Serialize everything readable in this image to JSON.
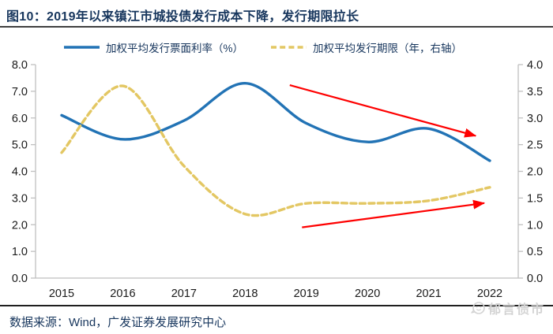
{
  "page": {
    "title": "图10：2019年以来镇江市城投债发行成本下降，发行期限拉长",
    "source_note": "数据来源：Wind，广发证券发展研究中心",
    "watermark": "郁言债市"
  },
  "legend": {
    "items": [
      {
        "label": "加权平均发行票面利率（%）"
      },
      {
        "label": "加权平均发行期限（年，右轴）"
      }
    ]
  },
  "chart_data": {
    "type": "line",
    "title": "图10：2019年以来镇江市城投债发行成本下降，发行期限拉长",
    "categories": [
      "2015",
      "2016",
      "2017",
      "2018",
      "2019",
      "2020",
      "2021",
      "2022"
    ],
    "series": [
      {
        "name": "加权平均发行票面利率（%）",
        "yaxis": "left",
        "line_style": "solid",
        "color": "#2273B5",
        "values": [
          6.1,
          5.2,
          5.9,
          7.3,
          5.8,
          5.1,
          5.6,
          4.4
        ]
      },
      {
        "name": "加权平均发行期限（年，右轴）",
        "yaxis": "right",
        "line_style": "dashed",
        "color": "#E3C763",
        "values": [
          2.35,
          3.6,
          2.1,
          1.2,
          1.4,
          1.4,
          1.45,
          1.7
        ]
      }
    ],
    "left_axis": {
      "range": [
        0,
        8
      ],
      "tick_step": 1.0,
      "tick_labels": [
        "8.0",
        "7.0",
        "6.0",
        "5.0",
        "4.0",
        "3.0",
        "2.0",
        "1.0",
        "0.0"
      ]
    },
    "right_axis": {
      "range": [
        0,
        4
      ],
      "tick_step": 0.5,
      "tick_labels": [
        "4.0",
        "3.5",
        "3.0",
        "2.5",
        "2.0",
        "1.5",
        "1.0",
        "0.5",
        "0.0"
      ]
    },
    "grid": false,
    "legend_position": "top",
    "annotations": [
      {
        "type": "arrow",
        "color": "#FE0000",
        "meaning": "发行成本下降 (coupon rate downtrend)",
        "from_x": 3.73,
        "from_y_left": 7.23,
        "to_x": 6.77,
        "to_y_left": 5.33
      },
      {
        "type": "arrow",
        "color": "#FE0000",
        "meaning": "发行期限拉长 (maturity uptrend)",
        "from_x": 3.93,
        "from_y_left": 1.9,
        "to_x": 6.91,
        "to_y_left": 2.81
      }
    ]
  },
  "colors": {
    "title": "#17365D",
    "axis_line": "#BFBFBF",
    "tick_label": "#1A1A1A",
    "arrow": "#FE0000",
    "watermark": "#D3D3D3"
  }
}
